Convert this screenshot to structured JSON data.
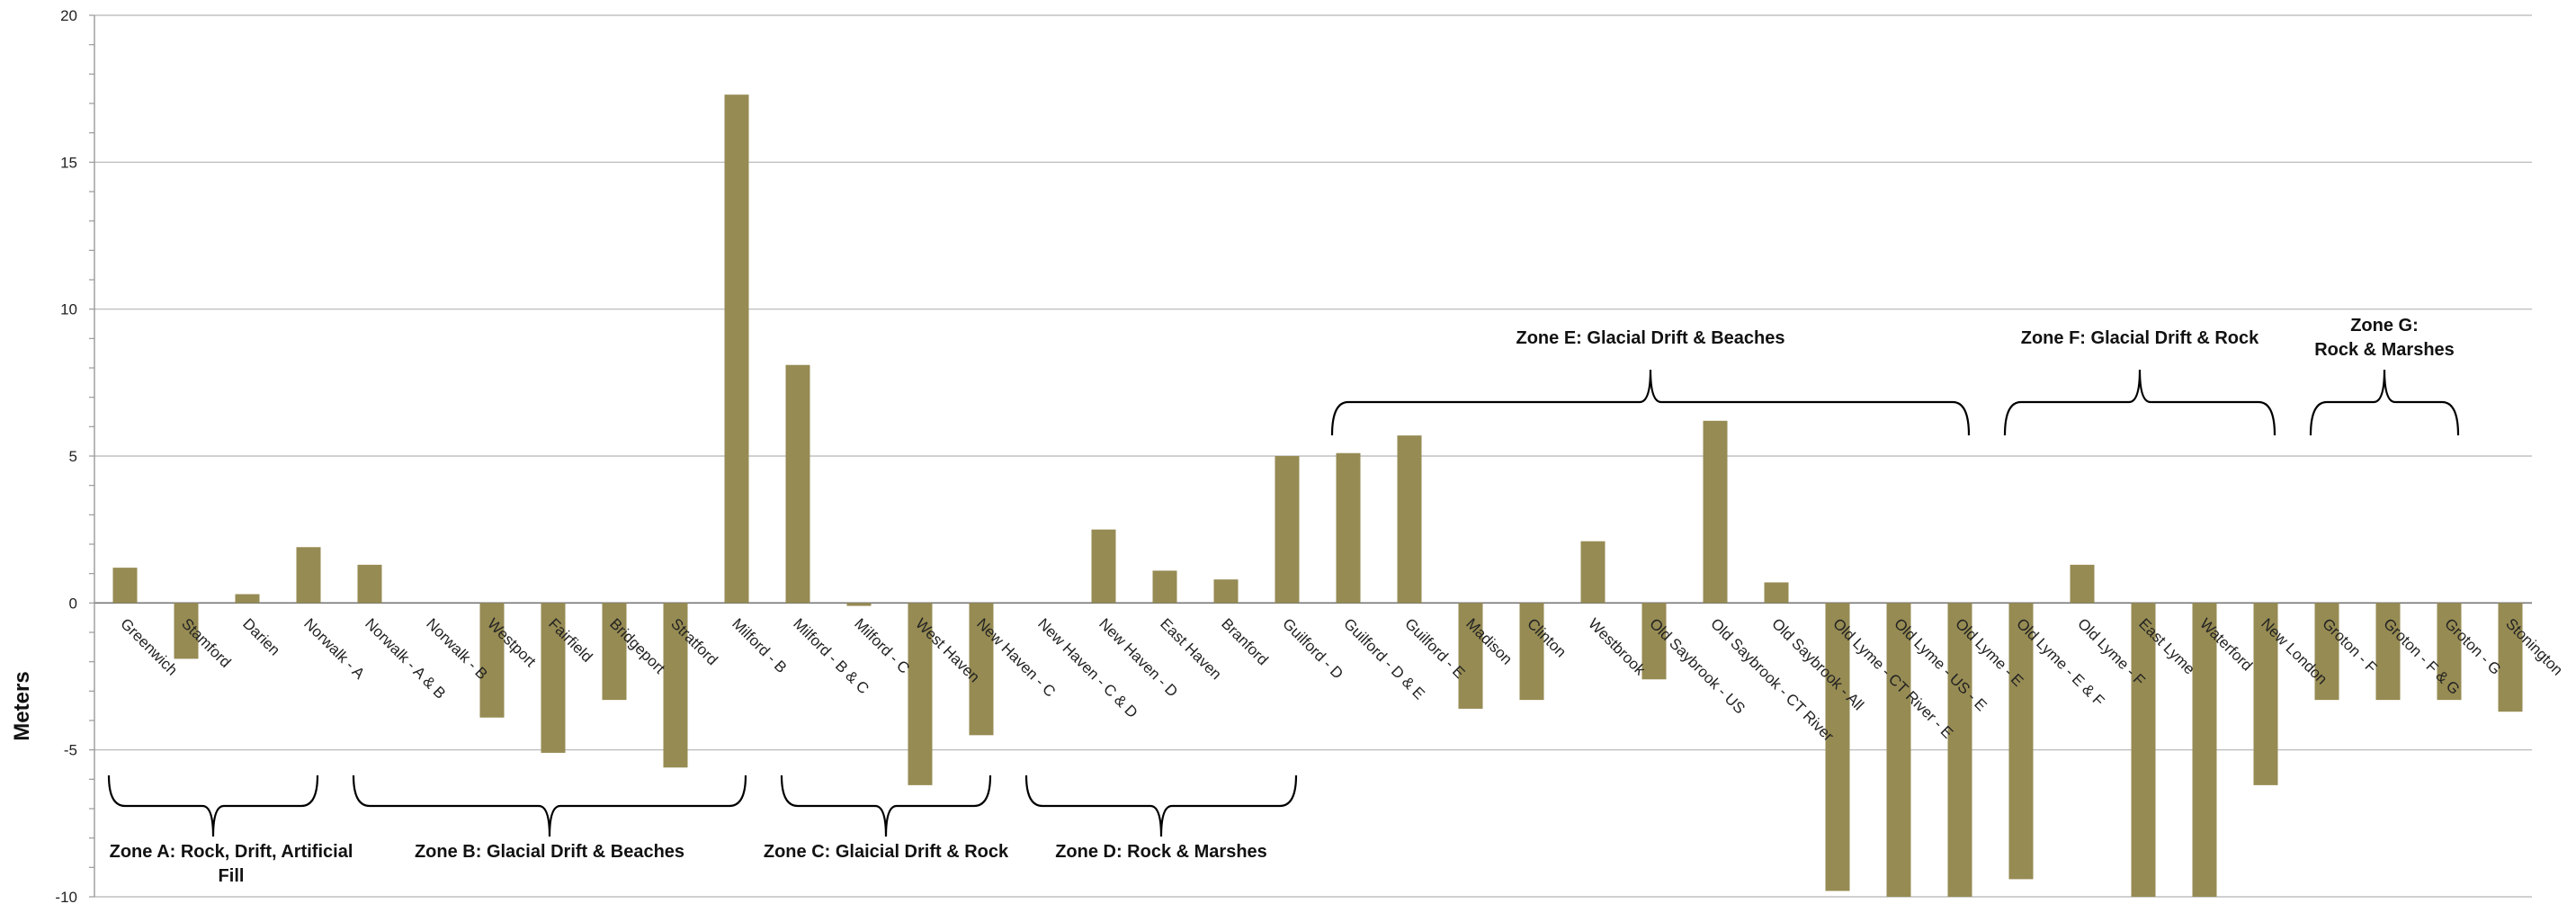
{
  "chart_data": {
    "type": "bar",
    "ylabel": "Meters",
    "ylim": [
      -10,
      20
    ],
    "yticks": [
      -10,
      -5,
      0,
      5,
      10,
      15,
      20
    ],
    "grid": true,
    "bar_color": "#968b53",
    "categories": [
      "Greenwich",
      "Stamford",
      "Darien",
      "Norwalk - A",
      "Norwalk - A & B",
      "Norwalk - B",
      "Westport",
      "Fairfield",
      "Bridgeport",
      "Stratford",
      "Milford - B",
      "Milford - B & C",
      "Milford - C",
      "West Haven",
      "New Haven - C",
      "New Haven - C & D",
      "New Haven - D",
      "East Haven",
      "Branford",
      "Guilford - D",
      "Guilford - D & E",
      "Guilford - E",
      "Madison",
      "Clinton",
      "Westbrook",
      "Old Saybrook - US",
      "Old Saybrook - CT River",
      "Old Saybrook - All",
      "Old Lyme - CT River - E",
      "Old Lyme - US - E",
      "Old Lyme - E",
      "Old Lyme - E & F",
      "Old Lyme - F",
      "East Lyme",
      "Waterford",
      "New London",
      "Groton - F",
      "Groton - F & G",
      "Groton - G",
      "Stonington"
    ],
    "values": [
      1.2,
      -1.9,
      0.3,
      1.9,
      1.3,
      0,
      -3.9,
      -5.1,
      -3.3,
      -5.6,
      17.3,
      8.1,
      -0.1,
      -6.2,
      -4.5,
      0,
      2.5,
      1.1,
      0.8,
      5.0,
      5.1,
      5.7,
      -3.6,
      -3.3,
      2.1,
      -2.6,
      6.2,
      0.7,
      -9.8,
      -10.5,
      -10.5,
      -9.4,
      1.3,
      -10.5,
      -10.5,
      -6.2,
      -3.3,
      -3.3,
      -3.3,
      -3.7
    ],
    "zones": [
      {
        "label_lines": [
          "Zone A: Rock, Drift, Artificial",
          "Fill"
        ],
        "from": 0,
        "to": 3,
        "side": "below"
      },
      {
        "label_lines": [
          "Zone B: Glacial Drift & Beaches"
        ],
        "from": 4,
        "to": 10,
        "side": "below"
      },
      {
        "label_lines": [
          "Zone C: Glaicial Drift & Rock"
        ],
        "from": 11,
        "to": 14,
        "side": "below"
      },
      {
        "label_lines": [
          "Zone D: Rock & Marshes"
        ],
        "from": 15,
        "to": 19,
        "side": "below"
      },
      {
        "label_lines": [
          "Zone E: Glacial Drift & Beaches"
        ],
        "from": 20,
        "to": 30,
        "side": "above"
      },
      {
        "label_lines": [
          "Zone F: Glacial Drift & Rock"
        ],
        "from": 31,
        "to": 35,
        "side": "above"
      },
      {
        "label_lines": [
          "Zone G:",
          "Rock & Marshes"
        ],
        "from": 36,
        "to": 38,
        "side": "above"
      }
    ]
  }
}
